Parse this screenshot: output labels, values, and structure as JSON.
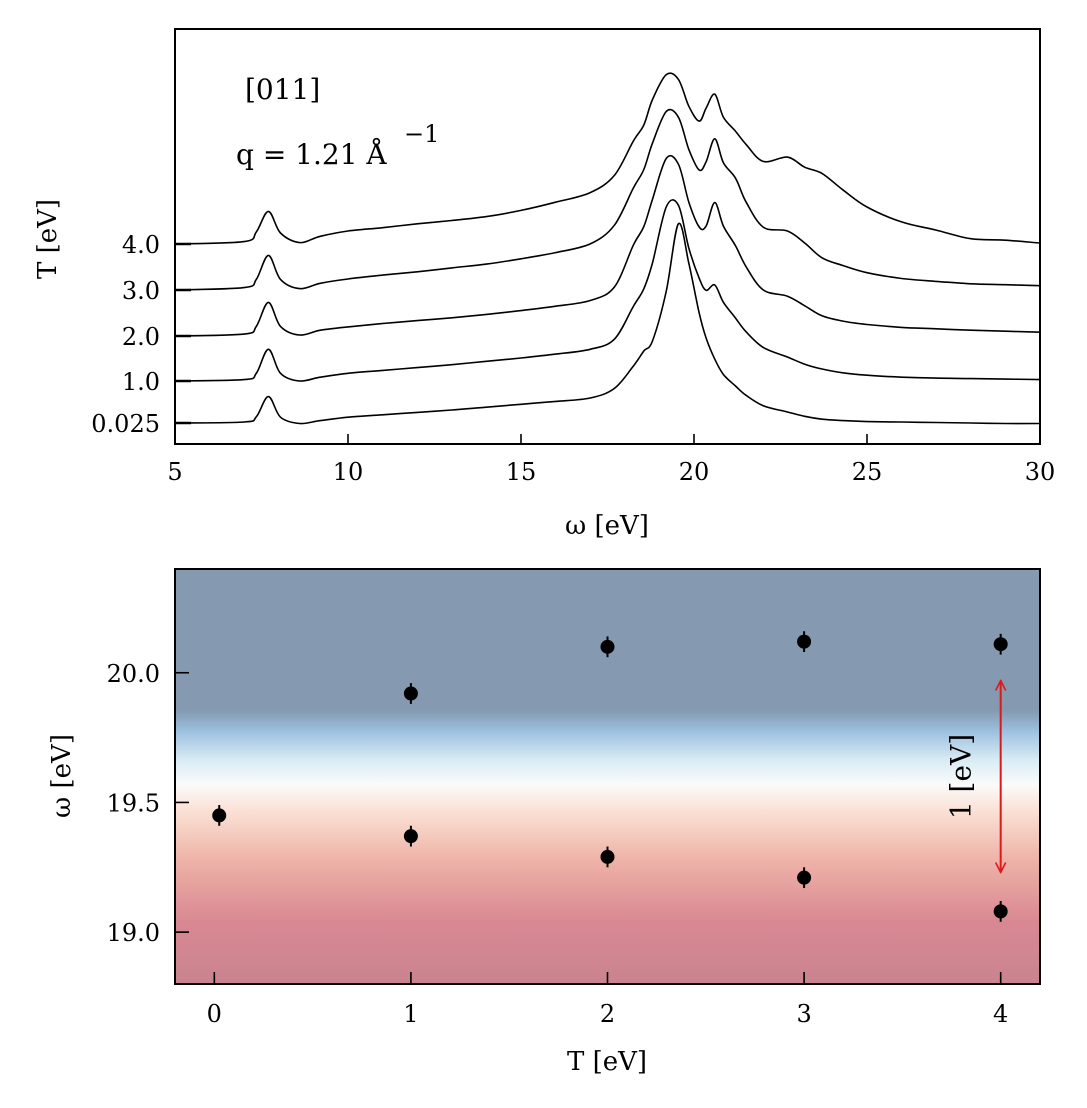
{
  "chart_data": [
    {
      "type": "line",
      "xlabel": "ω [eV]",
      "ylabel": "T [eV]",
      "xlim": [
        5,
        30
      ],
      "xticks": [
        5,
        10,
        15,
        20,
        25,
        30
      ],
      "annotations": [
        "[011]",
        "q = 1.21 Å",
        "−1"
      ],
      "yticks_labels": [
        "4.0",
        "3.0",
        "2.0",
        "1.0",
        "0.025"
      ],
      "series": [
        {
          "T": 4.0,
          "x": [
            5,
            7,
            7.35,
            7.7,
            8.05,
            8.6,
            9.2,
            10,
            11,
            12,
            13,
            14,
            15,
            16,
            17,
            17.7,
            18.25,
            18.55,
            18.8,
            19.2,
            19.55,
            19.85,
            20.15,
            20.35,
            20.6,
            20.85,
            21.2,
            21.5,
            22,
            22.7,
            23.2,
            23.7,
            24.3,
            25,
            26,
            27,
            28,
            29,
            30
          ],
          "y": [
            0.37,
            0.42,
            0.62,
            1.05,
            0.6,
            0.4,
            0.53,
            0.64,
            0.71,
            0.79,
            0.86,
            0.94,
            1.07,
            1.24,
            1.44,
            1.8,
            2.52,
            2.85,
            3.38,
            3.9,
            3.8,
            3.24,
            2.93,
            3.2,
            3.49,
            3.01,
            2.72,
            2.45,
            2.09,
            2.18,
            1.97,
            1.84,
            1.5,
            1.14,
            0.83,
            0.66,
            0.48,
            0.45,
            0.39
          ]
        },
        {
          "T": 3.0,
          "x": [
            5,
            7,
            7.35,
            7.7,
            8.05,
            8.6,
            9.2,
            10,
            11,
            12,
            13,
            14,
            15,
            16,
            17,
            17.7,
            18.25,
            18.55,
            18.8,
            19.2,
            19.55,
            19.85,
            20.15,
            20.35,
            20.6,
            20.85,
            21.2,
            21.5,
            22,
            22.7,
            23.2,
            23.7,
            24.3,
            25,
            26,
            27,
            28,
            29,
            30
          ],
          "y": [
            0.33,
            0.38,
            0.55,
            1.05,
            0.55,
            0.36,
            0.47,
            0.56,
            0.64,
            0.71,
            0.79,
            0.87,
            0.98,
            1.11,
            1.29,
            1.68,
            2.46,
            2.84,
            3.39,
            4.05,
            3.93,
            3.26,
            2.83,
            3.0,
            3.48,
            2.98,
            2.66,
            2.17,
            1.64,
            1.56,
            1.31,
            1.0,
            0.84,
            0.69,
            0.57,
            0.51,
            0.46,
            0.44,
            0.42
          ]
        },
        {
          "T": 2.0,
          "x": [
            5,
            7,
            7.35,
            7.7,
            8.05,
            8.6,
            9.2,
            10,
            11,
            12,
            13,
            14,
            15,
            16,
            17,
            17.7,
            18.25,
            18.55,
            18.8,
            19.2,
            19.55,
            19.85,
            20.15,
            20.35,
            20.6,
            20.85,
            21.2,
            21.5,
            22,
            22.7,
            23.2,
            23.7,
            24.3,
            25,
            26,
            27,
            28,
            29,
            30
          ],
          "y": [
            0.32,
            0.36,
            0.52,
            1.02,
            0.52,
            0.34,
            0.44,
            0.51,
            0.58,
            0.64,
            0.7,
            0.77,
            0.85,
            0.94,
            1.06,
            1.34,
            2.22,
            2.6,
            3.17,
            4.02,
            3.9,
            3.11,
            2.59,
            2.61,
            3.1,
            2.61,
            2.2,
            1.77,
            1.28,
            1.15,
            0.95,
            0.74,
            0.63,
            0.56,
            0.5,
            0.47,
            0.44,
            0.42,
            0.4
          ]
        },
        {
          "T": 1.0,
          "x": [
            5,
            7,
            7.35,
            7.7,
            8.05,
            8.6,
            9.2,
            10,
            11,
            12,
            13,
            14,
            15,
            16,
            17,
            17.7,
            18.25,
            18.55,
            18.8,
            19.2,
            19.55,
            19.85,
            20.15,
            20.35,
            20.6,
            20.85,
            21.2,
            21.5,
            22,
            22.7,
            23.2,
            23.7,
            24.3,
            25,
            26,
            27,
            28,
            29,
            30
          ],
          "y": [
            0.28,
            0.31,
            0.44,
            0.94,
            0.44,
            0.28,
            0.36,
            0.44,
            0.5,
            0.56,
            0.62,
            0.69,
            0.76,
            0.84,
            0.94,
            1.15,
            1.84,
            2.2,
            2.74,
            3.91,
            3.94,
            3.05,
            2.42,
            2.17,
            2.28,
            1.92,
            1.59,
            1.31,
            0.98,
            0.78,
            0.63,
            0.53,
            0.45,
            0.4,
            0.36,
            0.34,
            0.33,
            0.32,
            0.31
          ]
        },
        {
          "T": 0.025,
          "x": [
            5,
            7,
            7.35,
            7.7,
            8.05,
            8.6,
            9.2,
            10,
            11,
            12,
            13,
            14,
            15,
            16,
            17,
            17.7,
            18.25,
            18.55,
            18.8,
            19.2,
            19.55,
            19.85,
            20.15,
            20.35,
            20.6,
            20.85,
            21.2,
            21.5,
            22,
            22.7,
            23.2,
            23.7,
            24.3,
            25,
            26,
            27,
            28,
            29,
            30
          ],
          "y": [
            0.25,
            0.27,
            0.38,
            0.8,
            0.37,
            0.24,
            0.3,
            0.37,
            0.42,
            0.47,
            0.52,
            0.58,
            0.64,
            0.7,
            0.77,
            0.97,
            1.44,
            1.75,
            1.96,
            3.0,
            4.4,
            3.58,
            2.54,
            2.02,
            1.58,
            1.26,
            1.02,
            0.83,
            0.61,
            0.48,
            0.39,
            0.33,
            0.3,
            0.28,
            0.27,
            0.26,
            0.25,
            0.24,
            0.24
          ]
        }
      ]
    },
    {
      "type": "scatter",
      "xlabel": "T [eV]",
      "ylabel": "ω [eV]",
      "xlim": [
        -0.2,
        4.2
      ],
      "ylim": [
        18.8,
        20.4
      ],
      "xticks": [
        0,
        1,
        2,
        3,
        4
      ],
      "yticks": [
        19.0,
        19.5,
        20.0
      ],
      "background": "vertical gradient centred at 19.6 eV, blue above, red below",
      "series": [
        {
          "T": [
            0.025,
            1,
            2,
            3,
            4
          ],
          "omega": [
            19.45,
            19.37,
            19.29,
            19.21,
            19.08
          ],
          "err": 0.04
        },
        {
          "T": [
            1,
            2,
            3,
            4
          ],
          "omega": [
            19.92,
            20.1,
            20.12,
            20.11
          ],
          "err": 0.04
        }
      ],
      "arrow": {
        "T": 4.0,
        "from": 19.23,
        "to": 19.97,
        "color": "#dd1a1a",
        "label": "1 [eV]"
      }
    }
  ]
}
